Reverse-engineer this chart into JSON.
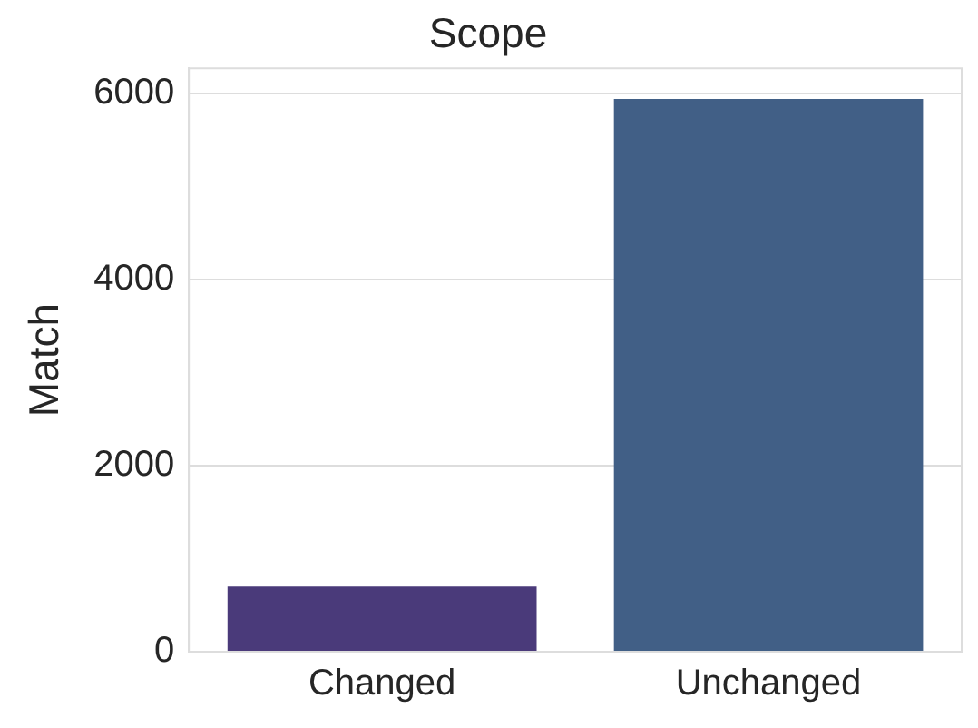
{
  "chart_data": {
    "type": "bar",
    "title": "Scope",
    "ylabel": "Match",
    "categories": [
      "Changed",
      "Unchanged"
    ],
    "values": [
      700,
      5940
    ],
    "colors": [
      "#4a3a7a",
      "#415f86"
    ],
    "ylim": [
      0,
      6270
    ],
    "yticks": [
      0,
      2000,
      4000,
      6000
    ],
    "grid": "y",
    "legend": false
  }
}
